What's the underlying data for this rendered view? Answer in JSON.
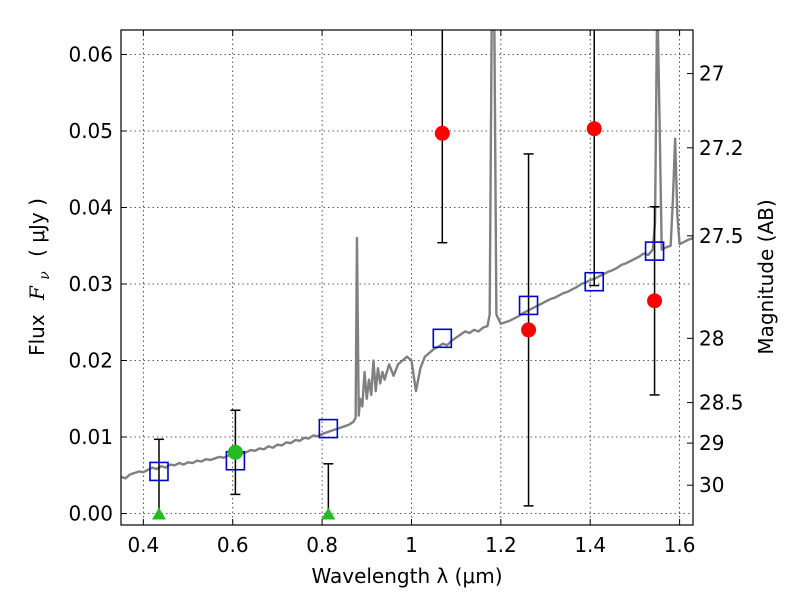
{
  "chart_data": {
    "type": "scatter",
    "xlabel": "Wavelength  λ (μm)",
    "ylabel_text": "Flux",
    "ylabel_symbol": "F",
    "ylabel_subscript": "ν",
    "ylabel_unit": "( μJy )",
    "ylabel_right": "Magnitude (AB)",
    "xlim": [
      0.35,
      1.63
    ],
    "ylim": [
      -0.0015,
      0.0632
    ],
    "x_ticks": [
      0.4,
      0.6,
      0.8,
      1.0,
      1.2,
      1.4,
      1.6
    ],
    "x_tick_labels": [
      "0.4",
      "0.6",
      "0.8",
      "1",
      "1.2",
      "1.4",
      "1.6"
    ],
    "y_ticks": [
      0.0,
      0.01,
      0.02,
      0.03,
      0.04,
      0.05,
      0.06
    ],
    "y_tick_labels": [
      "0.00",
      "0.01",
      "0.02",
      "0.03",
      "0.04",
      "0.05",
      "0.06"
    ],
    "right_ticks": [
      {
        "label": "27",
        "flux": 0.0575
      },
      {
        "label": "27.2",
        "flux": 0.0478
      },
      {
        "label": "27.5",
        "flux": 0.0363
      },
      {
        "label": "28",
        "flux": 0.0229
      },
      {
        "label": "28.5",
        "flux": 0.0145
      },
      {
        "label": "29",
        "flux": 0.0092
      },
      {
        "label": "30",
        "flux": 0.0037
      }
    ],
    "grid": true,
    "colors": {
      "model": "#808080",
      "model_points": "#0000cc",
      "measured": "#ff0000",
      "limits": "#22bb22",
      "errorbar": "#000000"
    },
    "model_spectrum": [
      [
        0.35,
        0.0048
      ],
      [
        0.36,
        0.0046
      ],
      [
        0.37,
        0.0051
      ],
      [
        0.38,
        0.0053
      ],
      [
        0.39,
        0.0055
      ],
      [
        0.4,
        0.0054
      ],
      [
        0.41,
        0.0057
      ],
      [
        0.42,
        0.006
      ],
      [
        0.43,
        0.0058
      ],
      [
        0.44,
        0.0062
      ],
      [
        0.45,
        0.006
      ],
      [
        0.46,
        0.0064
      ],
      [
        0.47,
        0.0063
      ],
      [
        0.48,
        0.0066
      ],
      [
        0.49,
        0.0064
      ],
      [
        0.5,
        0.0067
      ],
      [
        0.51,
        0.0066
      ],
      [
        0.52,
        0.0069
      ],
      [
        0.53,
        0.0068
      ],
      [
        0.54,
        0.0071
      ],
      [
        0.55,
        0.007
      ],
      [
        0.56,
        0.0072
      ],
      [
        0.57,
        0.0074
      ],
      [
        0.58,
        0.0073
      ],
      [
        0.59,
        0.0076
      ],
      [
        0.6,
        0.0075
      ],
      [
        0.61,
        0.0079
      ],
      [
        0.62,
        0.0078
      ],
      [
        0.63,
        0.008
      ],
      [
        0.64,
        0.0083
      ],
      [
        0.65,
        0.0082
      ],
      [
        0.66,
        0.0085
      ],
      [
        0.67,
        0.0084
      ],
      [
        0.68,
        0.0088
      ],
      [
        0.69,
        0.0086
      ],
      [
        0.7,
        0.009
      ],
      [
        0.71,
        0.0089
      ],
      [
        0.72,
        0.0093
      ],
      [
        0.73,
        0.0092
      ],
      [
        0.74,
        0.0096
      ],
      [
        0.75,
        0.0095
      ],
      [
        0.76,
        0.0099
      ],
      [
        0.77,
        0.0098
      ],
      [
        0.78,
        0.0102
      ],
      [
        0.79,
        0.0101
      ],
      [
        0.8,
        0.0104
      ],
      [
        0.81,
        0.0106
      ],
      [
        0.82,
        0.0108
      ],
      [
        0.83,
        0.011
      ],
      [
        0.84,
        0.0112
      ],
      [
        0.85,
        0.0114
      ],
      [
        0.86,
        0.0116
      ],
      [
        0.87,
        0.012
      ],
      [
        0.875,
        0.0125
      ],
      [
        0.878,
        0.036
      ],
      [
        0.882,
        0.0128
      ],
      [
        0.885,
        0.015
      ],
      [
        0.89,
        0.014
      ],
      [
        0.895,
        0.0185
      ],
      [
        0.9,
        0.015
      ],
      [
        0.905,
        0.0175
      ],
      [
        0.91,
        0.0155
      ],
      [
        0.915,
        0.02
      ],
      [
        0.92,
        0.016
      ],
      [
        0.925,
        0.019
      ],
      [
        0.93,
        0.017
      ],
      [
        0.935,
        0.0185
      ],
      [
        0.94,
        0.0175
      ],
      [
        0.95,
        0.0195
      ],
      [
        0.96,
        0.018
      ],
      [
        0.97,
        0.0195
      ],
      [
        0.98,
        0.02
      ],
      [
        0.99,
        0.0205
      ],
      [
        1.0,
        0.02
      ],
      [
        1.01,
        0.016
      ],
      [
        1.02,
        0.019
      ],
      [
        1.03,
        0.0205
      ],
      [
        1.04,
        0.021
      ],
      [
        1.05,
        0.0215
      ],
      [
        1.06,
        0.0218
      ],
      [
        1.07,
        0.0222
      ],
      [
        1.08,
        0.022
      ],
      [
        1.09,
        0.0226
      ],
      [
        1.1,
        0.023
      ],
      [
        1.11,
        0.0234
      ],
      [
        1.12,
        0.0238
      ],
      [
        1.13,
        0.0236
      ],
      [
        1.14,
        0.024
      ],
      [
        1.15,
        0.0238
      ],
      [
        1.16,
        0.0243
      ],
      [
        1.17,
        0.0245
      ],
      [
        1.175,
        0.026
      ],
      [
        1.18,
        0.068
      ],
      [
        1.185,
        0.068
      ],
      [
        1.19,
        0.026
      ],
      [
        1.2,
        0.0248
      ],
      [
        1.21,
        0.025
      ],
      [
        1.22,
        0.0252
      ],
      [
        1.23,
        0.0255
      ],
      [
        1.24,
        0.0258
      ],
      [
        1.25,
        0.0262
      ],
      [
        1.26,
        0.0265
      ],
      [
        1.27,
        0.0268
      ],
      [
        1.28,
        0.0271
      ],
      [
        1.29,
        0.0274
      ],
      [
        1.3,
        0.0277
      ],
      [
        1.31,
        0.028
      ],
      [
        1.32,
        0.0282
      ],
      [
        1.33,
        0.0285
      ],
      [
        1.34,
        0.0288
      ],
      [
        1.35,
        0.029
      ],
      [
        1.36,
        0.0293
      ],
      [
        1.37,
        0.0296
      ],
      [
        1.38,
        0.03
      ],
      [
        1.39,
        0.0302
      ],
      [
        1.4,
        0.0305
      ],
      [
        1.41,
        0.0307
      ],
      [
        1.42,
        0.031
      ],
      [
        1.43,
        0.0313
      ],
      [
        1.44,
        0.0316
      ],
      [
        1.45,
        0.0318
      ],
      [
        1.46,
        0.0321
      ],
      [
        1.47,
        0.0325
      ],
      [
        1.48,
        0.0327
      ],
      [
        1.49,
        0.033
      ],
      [
        1.5,
        0.0333
      ],
      [
        1.51,
        0.0336
      ],
      [
        1.52,
        0.034
      ],
      [
        1.53,
        0.0338
      ],
      [
        1.54,
        0.0345
      ],
      [
        1.545,
        0.038
      ],
      [
        1.55,
        0.068
      ],
      [
        1.555,
        0.052
      ],
      [
        1.56,
        0.0345
      ],
      [
        1.57,
        0.0348
      ],
      [
        1.58,
        0.035
      ],
      [
        1.585,
        0.041
      ],
      [
        1.59,
        0.049
      ],
      [
        1.595,
        0.039
      ],
      [
        1.6,
        0.0352
      ],
      [
        1.61,
        0.0355
      ],
      [
        1.62,
        0.0358
      ],
      [
        1.63,
        0.036
      ]
    ],
    "model_points": [
      {
        "x": 0.435,
        "y": 0.0055
      },
      {
        "x": 0.606,
        "y": 0.0069
      },
      {
        "x": 0.814,
        "y": 0.0111
      },
      {
        "x": 1.069,
        "y": 0.0229
      },
      {
        "x": 1.262,
        "y": 0.0272
      },
      {
        "x": 1.409,
        "y": 0.0303
      },
      {
        "x": 1.544,
        "y": 0.0343
      }
    ],
    "measurements": [
      {
        "x": 0.606,
        "y": 0.008,
        "err_low": 0.0055,
        "err_high": 0.0055,
        "color": "limits"
      },
      {
        "x": 1.069,
        "y": 0.0497,
        "err_low": 0.0143,
        "err_high": 0.03,
        "color": "measured"
      },
      {
        "x": 1.262,
        "y": 0.024,
        "err_low": 0.023,
        "err_high": 0.023,
        "color": "measured"
      },
      {
        "x": 1.409,
        "y": 0.0503,
        "err_low": 0.0205,
        "err_high": 0.03,
        "color": "measured"
      },
      {
        "x": 1.544,
        "y": 0.0278,
        "err_low": 0.0123,
        "err_high": 0.0123,
        "color": "measured"
      }
    ],
    "upper_limits": [
      {
        "x": 0.435,
        "y": 0.0,
        "upper": 0.0097
      },
      {
        "x": 0.814,
        "y": 0.0,
        "upper": 0.0065
      }
    ]
  }
}
